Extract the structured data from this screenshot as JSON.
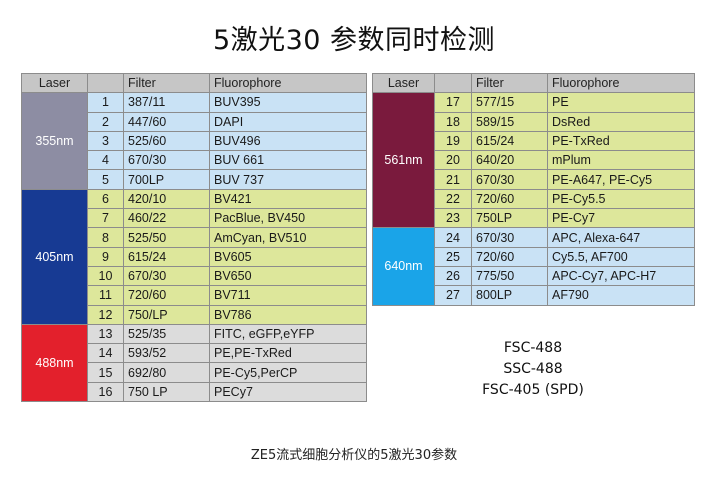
{
  "title": "5激光30 参数同时检测",
  "caption": "ZE5流式细胞分析仪的5激光30参数",
  "notes": [
    "FSC-488",
    "SSC-488",
    "FSC-405 (SPD)"
  ],
  "headers": {
    "laser": "Laser",
    "filter": "Filter",
    "fluorophore": "Fluorophore"
  },
  "left_table": [
    {
      "laser": "355nm",
      "color": "#8d8da3",
      "row_color": "#c9e2f5",
      "rows": [
        {
          "n": "1",
          "filter": "387/11",
          "fluor": "BUV395"
        },
        {
          "n": "2",
          "filter": "447/60",
          "fluor": "DAPI"
        },
        {
          "n": "3",
          "filter": "525/60",
          "fluor": "BUV496"
        },
        {
          "n": "4",
          "filter": "670/30",
          "fluor": "BUV 661"
        },
        {
          "n": "5",
          "filter": "700LP",
          "fluor": "BUV 737"
        }
      ]
    },
    {
      "laser": "405nm",
      "color": "#173a93",
      "row_color": "#dde79b",
      "rows": [
        {
          "n": "6",
          "filter": "420/10",
          "fluor": "BV421"
        },
        {
          "n": "7",
          "filter": "460/22",
          "fluor": "PacBlue, BV450"
        },
        {
          "n": "8",
          "filter": "525/50",
          "fluor": "AmCyan, BV510"
        },
        {
          "n": "9",
          "filter": "615/24",
          "fluor": "BV605"
        },
        {
          "n": "10",
          "filter": "670/30",
          "fluor": "BV650"
        },
        {
          "n": "11",
          "filter": "720/60",
          "fluor": "BV711"
        },
        {
          "n": "12",
          "filter": "750/LP",
          "fluor": "BV786"
        }
      ]
    },
    {
      "laser": "488nm",
      "color": "#e3202c",
      "row_color": "#dcdcdc",
      "rows": [
        {
          "n": "13",
          "filter": "525/35",
          "fluor": "FITC, eGFP,eYFP"
        },
        {
          "n": "14",
          "filter": "593/52",
          "fluor": "PE,PE-TxRed"
        },
        {
          "n": "15",
          "filter": "692/80",
          "fluor": "PE-Cy5,PerCP"
        },
        {
          "n": "16",
          "filter": "750 LP",
          "fluor": "PECy7"
        }
      ]
    }
  ],
  "right_table": [
    {
      "laser": "561nm",
      "color": "#7a1a3d",
      "row_color": "#dde79b",
      "rows": [
        {
          "n": "17",
          "filter": "577/15",
          "fluor": "PE"
        },
        {
          "n": "18",
          "filter": "589/15",
          "fluor": "DsRed"
        },
        {
          "n": "19",
          "filter": "615/24",
          "fluor": "PE-TxRed"
        },
        {
          "n": "20",
          "filter": "640/20",
          "fluor": "mPlum"
        },
        {
          "n": "21",
          "filter": "670/30",
          "fluor": "PE-A647, PE-Cy5"
        },
        {
          "n": "22",
          "filter": "720/60",
          "fluor": "PE-Cy5.5"
        },
        {
          "n": "23",
          "filter": "750LP",
          "fluor": "PE-Cy7"
        }
      ]
    },
    {
      "laser": "640nm",
      "color": "#1aa4e8",
      "row_color": "#c9e2f5",
      "rows": [
        {
          "n": "24",
          "filter": "670/30",
          "fluor": "APC, Alexa-647"
        },
        {
          "n": "25",
          "filter": "720/60",
          "fluor": "Cy5.5, AF700"
        },
        {
          "n": "26",
          "filter": "775/50",
          "fluor": "APC-Cy7, APC-H7"
        },
        {
          "n": "27",
          "filter": "800LP",
          "fluor": "AF790"
        }
      ]
    }
  ]
}
